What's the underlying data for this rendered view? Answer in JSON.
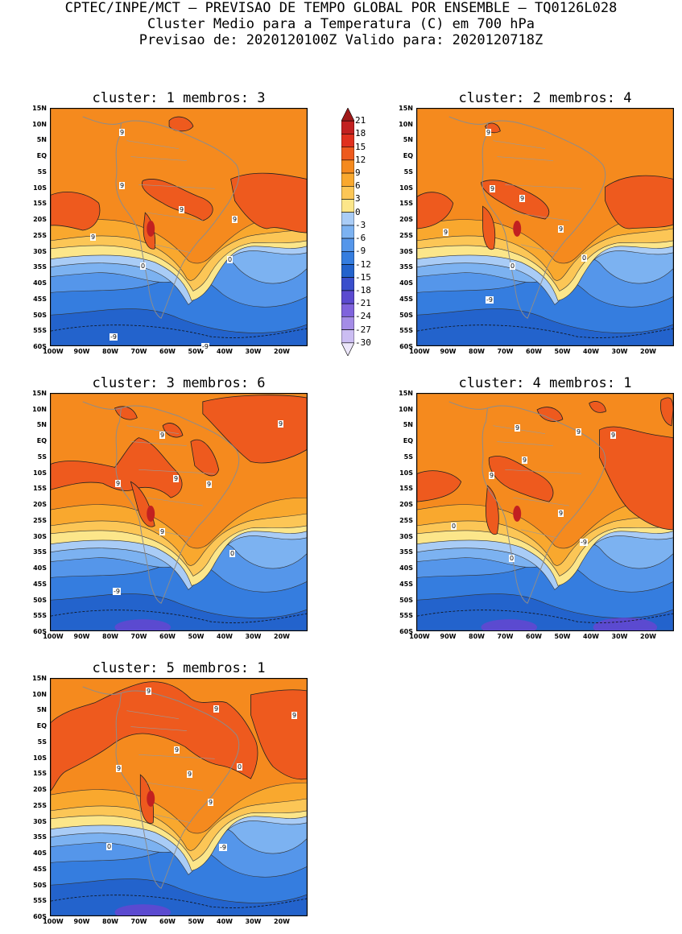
{
  "header": {
    "line1": "CPTEC/INPE/MCT – PREVISAO DE TEMPO GLOBAL POR ENSEMBLE – TQ0126L028",
    "line2": "Cluster Medio para a Temperatura (C) em 700 hPa",
    "line3": "Previsao de: 2020120100Z   Valido para: 2020120718Z"
  },
  "axes": {
    "lat_labels": [
      "15N",
      "10N",
      "5N",
      "EQ",
      "5S",
      "10S",
      "15S",
      "20S",
      "25S",
      "30S",
      "35S",
      "40S",
      "45S",
      "50S",
      "55S",
      "60S"
    ],
    "lon_labels": [
      "100W",
      "90W",
      "80W",
      "70W",
      "60W",
      "50W",
      "40W",
      "30W",
      "20W"
    ]
  },
  "colorbar": {
    "labels": [
      "21",
      "18",
      "15",
      "12",
      "9",
      "6",
      "3",
      "0",
      "-3",
      "-6",
      "-9",
      "-12",
      "-15",
      "-18",
      "-21",
      "-24",
      "-27",
      "-30"
    ],
    "colors": [
      "#a01a1a",
      "#c22020",
      "#e0301e",
      "#ee5a1e",
      "#f58a1e",
      "#f9a82e",
      "#fcc656",
      "#fce68a",
      "#a9ccf6",
      "#7cb2f1",
      "#5596ea",
      "#357ddf",
      "#2363cc",
      "#3a4fcc",
      "#5b4ad0",
      "#7f63dc",
      "#a48ce6",
      "#cbbdf2",
      "#ece6fa"
    ]
  },
  "panels": [
    {
      "title": "cluster: 1   membros: 3",
      "labels": [
        "9",
        "9",
        "9",
        "9",
        "9",
        "0",
        "0",
        "-9",
        "-9"
      ]
    },
    {
      "title": "cluster: 2   membros: 4",
      "labels": [
        "9",
        "9",
        "9",
        "9",
        "9",
        "0",
        "0",
        "-9"
      ]
    },
    {
      "title": "cluster: 3   membros: 6",
      "labels": [
        "9",
        "9",
        "9",
        "9",
        "9",
        "9",
        "0",
        "-9"
      ]
    },
    {
      "title": "cluster: 4   membros: 1",
      "labels": [
        "9",
        "9",
        "9",
        "9",
        "9",
        "9",
        "0",
        "0",
        "-9"
      ]
    },
    {
      "title": "cluster: 5   membros: 1",
      "labels": [
        "9",
        "9",
        "9",
        "9",
        "9",
        "9",
        "9",
        "0",
        "0",
        "-9"
      ]
    }
  ]
}
